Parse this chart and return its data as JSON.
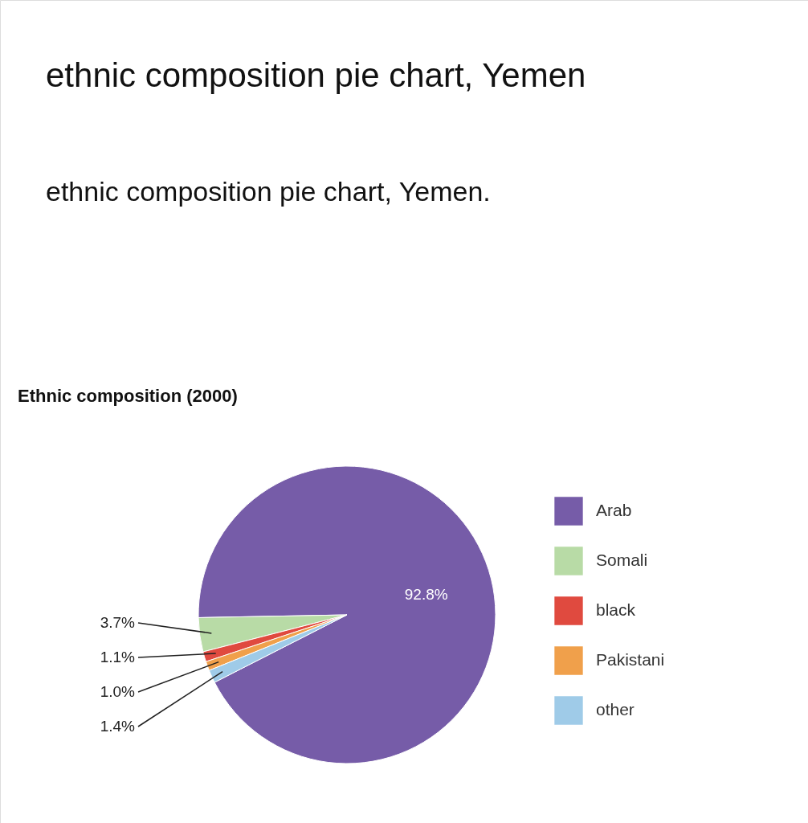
{
  "chart_data": {
    "type": "pie",
    "title": "ethnic composition pie chart, Yemen",
    "subtitle": "ethnic composition pie chart, Yemen.",
    "annotations": [
      "Ethnic composition (2000)"
    ],
    "categories": [
      "Arab",
      "Somali",
      "black",
      "Pakistani",
      "other"
    ],
    "values": [
      92.8,
      3.7,
      1.1,
      1.0,
      1.4
    ],
    "colors": [
      "#765ca8",
      "#b8dba6",
      "#e04a3f",
      "#f0a04b",
      "#9fcbe8"
    ],
    "value_labels": [
      "92.8%",
      "3.7%",
      "1.1%",
      "1.0%",
      "1.4%"
    ],
    "legend": "right"
  }
}
